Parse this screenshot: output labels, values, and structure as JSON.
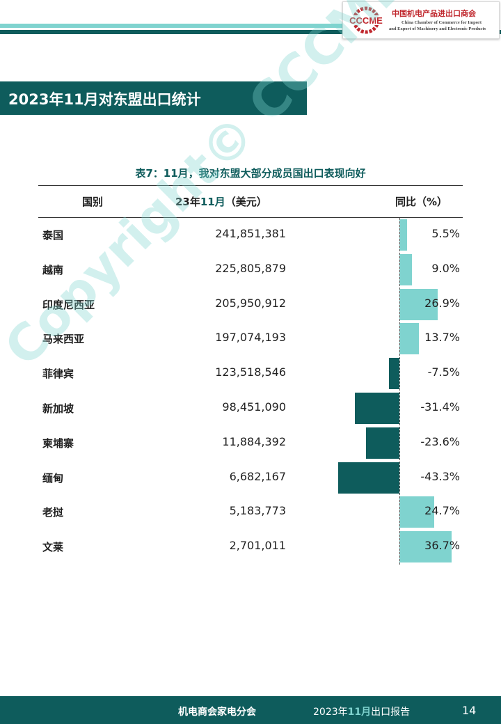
{
  "logo": {
    "emblem_text": "CCCME",
    "name_cn": "中国机电产品进出口商会",
    "name_en_line1": "China Chamber of Commerce for Import",
    "name_en_line2": "and Export of Machinery and Electronic Products",
    "colors": {
      "red": "#c0282e",
      "blue": "#1f4fa0"
    }
  },
  "page_title": "2023年11月对东盟出口统计",
  "table": {
    "caption": "表7：11月，我对东盟大部分成员国出口表现向好",
    "headers": {
      "country": "国别",
      "value_prefix": "23年",
      "value_month": "11月",
      "value_suffix": "（美元）",
      "yoy": "同比（%）"
    },
    "bar_scale_max_pct": 43.3,
    "rows": [
      {
        "country": "泰国",
        "value": "241,851,381",
        "yoy_pct": 5.5,
        "yoy": "5.5%"
      },
      {
        "country": "越南",
        "value": "225,805,879",
        "yoy_pct": 9.0,
        "yoy": "9.0%"
      },
      {
        "country": "印度尼西亚",
        "value": "205,950,912",
        "yoy_pct": 26.9,
        "yoy": "26.9%"
      },
      {
        "country": "马来西亚",
        "value": "197,074,193",
        "yoy_pct": 13.7,
        "yoy": "13.7%"
      },
      {
        "country": "菲律宾",
        "value": "123,518,546",
        "yoy_pct": -7.5,
        "yoy": "-7.5%"
      },
      {
        "country": "新加坡",
        "value": "98,451,090",
        "yoy_pct": -31.4,
        "yoy": "-31.4%"
      },
      {
        "country": "柬埔寨",
        "value": "11,884,392",
        "yoy_pct": -23.6,
        "yoy": "-23.6%"
      },
      {
        "country": "缅甸",
        "value": "6,682,167",
        "yoy_pct": -43.3,
        "yoy": "-43.3%"
      },
      {
        "country": "老挝",
        "value": "5,183,773",
        "yoy_pct": 24.7,
        "yoy": "24.7%"
      },
      {
        "country": "文莱",
        "value": "2,701,011",
        "yoy_pct": 36.7,
        "yoy": "36.7%"
      }
    ],
    "colors": {
      "positive": "#7fd3cf",
      "negative": "#0e5c5c"
    }
  },
  "watermark": "Copyright© CCCME",
  "footer": {
    "org": "机电商会家电分会",
    "report_prefix": "2023年",
    "report_month": "11月",
    "report_suffix": "出口报告",
    "page_number": "14"
  },
  "theme": {
    "dark_teal": "#0e5c5c",
    "light_teal": "#7fd3cf"
  }
}
